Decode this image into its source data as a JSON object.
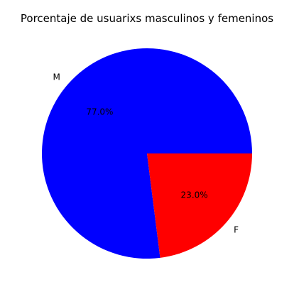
{
  "chart_data": {
    "type": "pie",
    "title": "Porcentaje de usuarixs masculinos y femeninos",
    "slices": [
      {
        "label": "M",
        "value": 77.0,
        "pct_label": "77.0%",
        "color": "#0000ff"
      },
      {
        "label": "F",
        "value": 23.0,
        "pct_label": "23.0%",
        "color": "#ff0000"
      }
    ],
    "start_angle_deg": 0,
    "direction": "counterclockwise",
    "legend": "none"
  }
}
